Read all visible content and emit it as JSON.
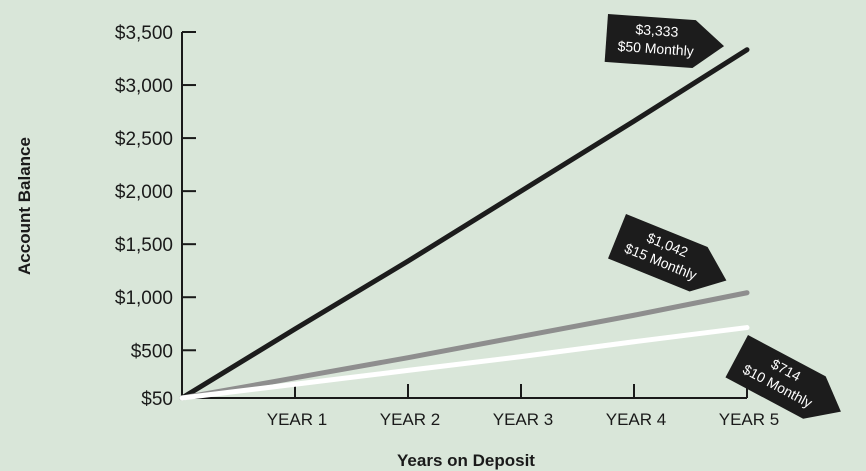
{
  "chart_data": {
    "type": "line",
    "xlabel": "Years on Deposit",
    "ylabel": "Account Balance",
    "x_ticks": [
      "YEAR 1",
      "YEAR 2",
      "YEAR 3",
      "YEAR 4",
      "YEAR 5"
    ],
    "y_ticks": [
      "$50",
      "$500",
      "$1,000",
      "$1,500",
      "$2,000",
      "$2,500",
      "$3,000",
      "$3,500"
    ],
    "y_tick_values": [
      50,
      500,
      1000,
      1500,
      2000,
      2500,
      3000,
      3500
    ],
    "x": [
      0,
      1,
      2,
      3,
      4,
      5
    ],
    "ylim": [
      50,
      3500
    ],
    "series": [
      {
        "values": [
          50,
          700,
          1340,
          2000,
          2660,
          3333
        ],
        "color": "#1c1c1c",
        "label": [
          "$3,333",
          "$50 Monthly"
        ]
      },
      {
        "values": [
          50,
          240,
          430,
          630,
          830,
          1042
        ],
        "color": "#8e8e8e",
        "label": [
          "$1,042",
          "$15 Monthly"
        ]
      },
      {
        "values": [
          50,
          180,
          310,
          440,
          580,
          714
        ],
        "color": "#ffffff",
        "label": [
          "$714",
          "$10 Monthly"
        ]
      }
    ],
    "grid": false
  },
  "colors": {
    "background": "#d9e6d9",
    "axis": "#1a1a1a",
    "tag": "#1c1c1c"
  }
}
